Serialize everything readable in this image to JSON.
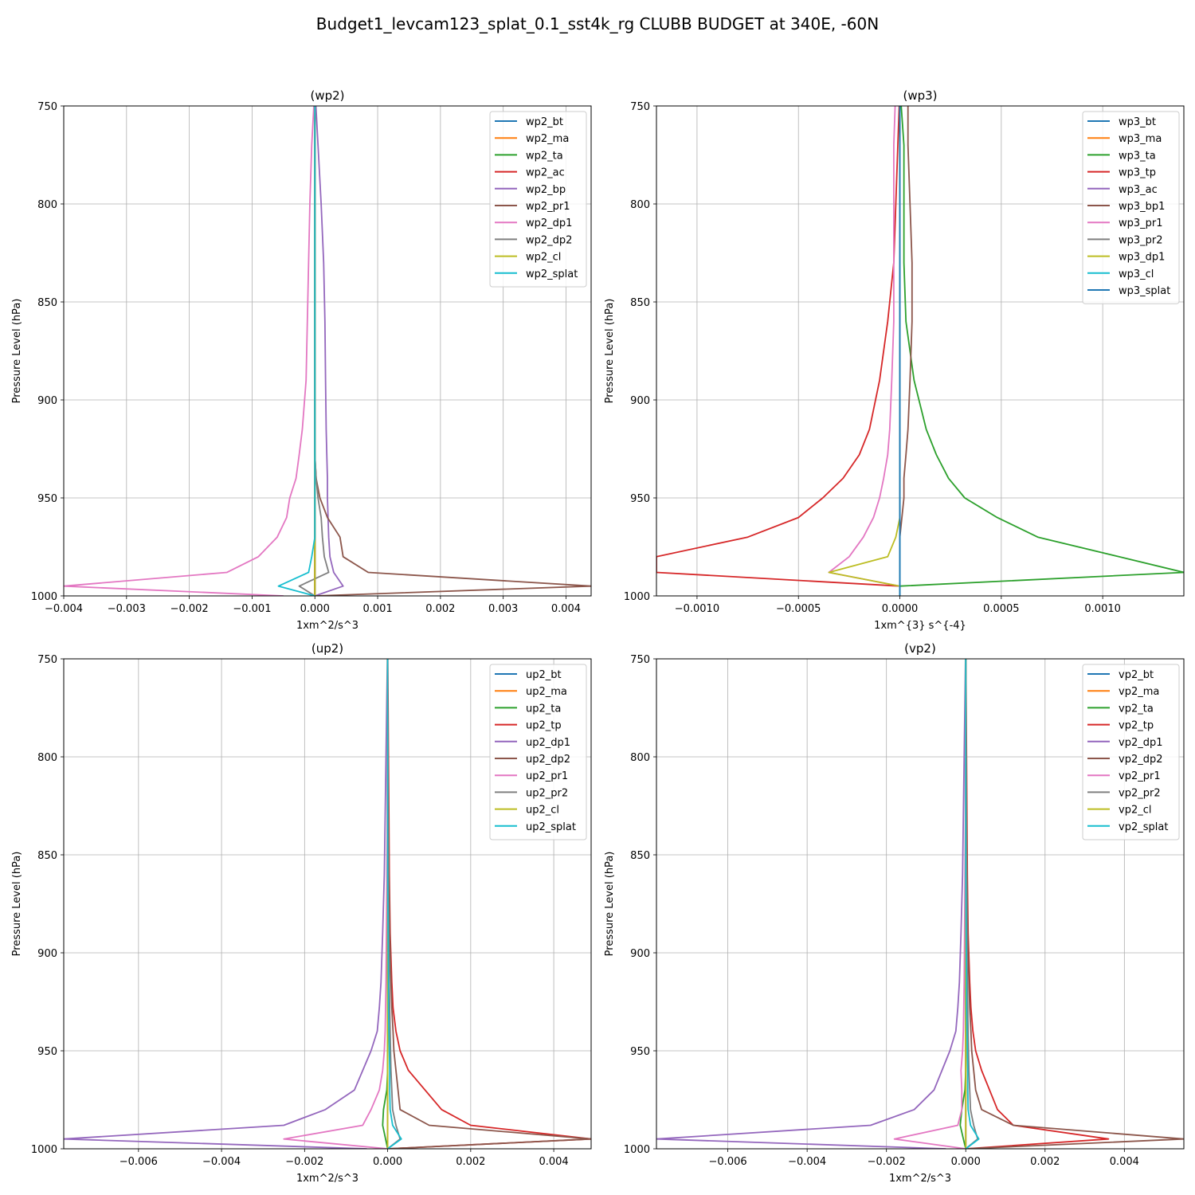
{
  "figure": {
    "title": "Budget1_levcam123_splat_0.1_sst4k_rg CLUBB BUDGET at 340E, -60N"
  },
  "colors": [
    "#1f77b4",
    "#ff7f0e",
    "#2ca02c",
    "#d62728",
    "#9467bd",
    "#8c564b",
    "#e377c2",
    "#7f7f7f",
    "#bcbd22",
    "#17becf"
  ],
  "chart_data": [
    {
      "type": "line",
      "title": "(wp2)",
      "xlabel": "1xm^2/s^3",
      "ylabel": "Pressure Level (hPa)",
      "xlim": [
        -0.004,
        0.0044
      ],
      "ylim": [
        1000,
        750
      ],
      "xticks": [
        -0.004,
        -0.003,
        -0.002,
        -0.001,
        0.0,
        0.001,
        0.002,
        0.003,
        0.004
      ],
      "xtick_labels": [
        "−0.004",
        "−0.003",
        "−0.002",
        "−0.001",
        "0.000",
        "0.001",
        "0.002",
        "0.003",
        "0.004"
      ],
      "yticks": [
        750,
        800,
        850,
        900,
        950,
        1000
      ],
      "ytick_labels": [
        "750",
        "800",
        "850",
        "900",
        "950",
        "1000"
      ],
      "grid": true,
      "legend_position": "top-right",
      "levels": [
        740,
        770,
        800,
        830,
        860,
        890,
        915,
        928,
        940,
        950,
        960,
        970,
        980,
        988,
        995,
        1000
      ],
      "series": [
        {
          "name": "wp2_bt",
          "values": [
            0,
            0,
            0,
            0,
            0,
            0,
            0,
            0,
            0,
            0,
            0,
            0,
            0,
            0,
            0,
            0
          ]
        },
        {
          "name": "wp2_ma",
          "values": [
            0,
            0,
            0,
            0,
            0,
            0,
            0,
            0,
            0,
            0,
            0,
            0,
            0,
            0,
            0,
            0
          ]
        },
        {
          "name": "wp2_ta",
          "values": [
            0,
            0,
            0,
            0,
            0,
            0,
            0,
            0,
            0,
            0,
            0,
            0,
            0,
            0,
            0,
            0
          ]
        },
        {
          "name": "wp2_ac",
          "values": [
            0,
            0,
            0,
            0,
            0,
            0,
            0,
            0,
            0,
            0,
            0,
            0,
            0,
            0,
            0,
            0
          ]
        },
        {
          "name": "wp2_bp",
          "values": [
            0.0,
            5e-05,
            0.0001,
            0.00014,
            0.00016,
            0.00017,
            0.00018,
            0.00019,
            0.0002,
            0.0002,
            0.00021,
            0.00022,
            0.00024,
            0.0003,
            0.00045,
            0.0
          ]
        },
        {
          "name": "wp2_pr1",
          "values": [
            0,
            0,
            0,
            0,
            0,
            0,
            0,
            0,
            2e-05,
            8e-05,
            0.0002,
            0.0004,
            0.00045,
            0.00085,
            0.0044,
            0.0
          ]
        },
        {
          "name": "wp2_dp1",
          "values": [
            0.0,
            -5e-05,
            -8e-05,
            -0.0001,
            -0.00012,
            -0.00014,
            -0.0002,
            -0.00025,
            -0.0003,
            -0.0004,
            -0.00045,
            -0.0006,
            -0.0009,
            -0.0014,
            -0.004,
            -0.0005
          ]
        },
        {
          "name": "wp2_dp2",
          "values": [
            0,
            0,
            0,
            0,
            0,
            0,
            0,
            0,
            2e-05,
            5e-05,
            0.0001,
            0.00012,
            0.00015,
            0.00022,
            -0.00025,
            0.0
          ]
        },
        {
          "name": "wp2_cl",
          "values": [
            0,
            0,
            0,
            0,
            0,
            0,
            0,
            0,
            0,
            0,
            0,
            0,
            0,
            0,
            0,
            0
          ]
        },
        {
          "name": "wp2_splat",
          "values": [
            0,
            0,
            0,
            0,
            0,
            0,
            0,
            0,
            0,
            0,
            0,
            0,
            -5e-05,
            -0.0001,
            -0.00058,
            0.0
          ]
        }
      ]
    },
    {
      "type": "line",
      "title": "(wp3)",
      "xlabel": "1xm^{3} s^{-4}",
      "ylabel": "Pressure Level (hPa)",
      "xlim": [
        -0.0012,
        0.0014
      ],
      "ylim": [
        1000,
        750
      ],
      "xticks": [
        -0.001,
        -0.0005,
        0.0,
        0.0005,
        0.001
      ],
      "xtick_labels": [
        "−0.0010",
        "−0.0005",
        "0.0000",
        "0.0005",
        "0.0010"
      ],
      "yticks": [
        750,
        800,
        850,
        900,
        950,
        1000
      ],
      "ytick_labels": [
        "750",
        "800",
        "850",
        "900",
        "950",
        "1000"
      ],
      "grid": true,
      "legend_position": "top-right",
      "levels": [
        740,
        770,
        800,
        830,
        860,
        890,
        915,
        928,
        940,
        950,
        960,
        970,
        980,
        988,
        995,
        1000
      ],
      "series": [
        {
          "name": "wp3_bt",
          "values": [
            0,
            0,
            0,
            0,
            0,
            0,
            0,
            0,
            0,
            0,
            0,
            0,
            0,
            0,
            0,
            0
          ]
        },
        {
          "name": "wp3_ma",
          "values": [
            0,
            0,
            0,
            0,
            0,
            0,
            0,
            0,
            0,
            0,
            0,
            0,
            0,
            0,
            0,
            0
          ]
        },
        {
          "name": "wp3_ta",
          "values": [
            0.0,
            2e-05,
            2e-05,
            2e-05,
            3e-05,
            7e-05,
            0.00013,
            0.00018,
            0.00024,
            0.00032,
            0.00048,
            0.00068,
            0.00108,
            0.0014,
            0.0,
            0.0
          ]
        },
        {
          "name": "wp3_tp",
          "values": [
            0.0,
            -1e-05,
            -2e-05,
            -3e-05,
            -6e-05,
            -0.0001,
            -0.00015,
            -0.0002,
            -0.00028,
            -0.00038,
            -0.0005,
            -0.00075,
            -0.0012,
            -0.0012,
            0.0,
            0.0
          ]
        },
        {
          "name": "wp3_ac",
          "values": [
            0,
            0,
            0,
            0,
            0,
            0,
            0,
            0,
            0,
            0,
            0,
            0,
            0,
            0,
            0,
            0
          ]
        },
        {
          "name": "wp3_bp1",
          "values": [
            4e-05,
            4e-05,
            5e-05,
            6e-05,
            6e-05,
            5e-05,
            4e-05,
            3e-05,
            2e-05,
            2e-05,
            1e-05,
            0.0,
            0.0,
            0.0,
            0.0,
            0.0
          ]
        },
        {
          "name": "wp3_pr1",
          "values": [
            -2e-05,
            -3e-05,
            -3e-05,
            -3e-05,
            -3e-05,
            -4e-05,
            -5e-05,
            -6e-05,
            -8e-05,
            -0.0001,
            -0.00013,
            -0.00018,
            -0.00025,
            -0.00035,
            0.0,
            0.0
          ]
        },
        {
          "name": "wp3_pr2",
          "values": [
            0,
            0,
            0,
            0,
            0,
            0,
            0,
            0,
            0,
            0,
            0,
            0,
            0,
            0,
            0,
            0
          ]
        },
        {
          "name": "wp3_dp1",
          "values": [
            0.0,
            0.0,
            0.0,
            0.0,
            0.0,
            0.0,
            0.0,
            0.0,
            0.0,
            0.0,
            0.0,
            -2e-05,
            -6e-05,
            -0.00035,
            0.0,
            0.0
          ]
        },
        {
          "name": "wp3_cl",
          "values": [
            0,
            0,
            0,
            0,
            0,
            0,
            0,
            0,
            0,
            0,
            0,
            0,
            0,
            0,
            0,
            0
          ]
        },
        {
          "name": "wp3_splat",
          "values": [
            0,
            0,
            0,
            0,
            0,
            0,
            0,
            0,
            0,
            0,
            0,
            0,
            0,
            0,
            0,
            0
          ]
        }
      ]
    },
    {
      "type": "line",
      "title": "(up2)",
      "xlabel": "1xm^2/s^3",
      "ylabel": "Pressure Level (hPa)",
      "xlim": [
        -0.0078,
        0.0049
      ],
      "ylim": [
        1000,
        750
      ],
      "xticks": [
        -0.006,
        -0.004,
        -0.002,
        0.0,
        0.002,
        0.004
      ],
      "xtick_labels": [
        "−0.006",
        "−0.004",
        "−0.002",
        "0.000",
        "0.002",
        "0.004"
      ],
      "yticks": [
        750,
        800,
        850,
        900,
        950,
        1000
      ],
      "ytick_labels": [
        "750",
        "800",
        "850",
        "900",
        "950",
        "1000"
      ],
      "grid": true,
      "legend_position": "top-right",
      "levels": [
        740,
        770,
        800,
        830,
        860,
        890,
        915,
        928,
        940,
        950,
        960,
        970,
        980,
        988,
        995,
        1000
      ],
      "series": [
        {
          "name": "up2_bt",
          "values": [
            0,
            0,
            0,
            0,
            0,
            0,
            0,
            0,
            0,
            0,
            0,
            0,
            0,
            0,
            0,
            0
          ]
        },
        {
          "name": "up2_ma",
          "values": [
            0,
            0,
            0,
            0,
            0,
            0,
            0,
            0,
            0,
            0,
            0,
            0,
            0,
            0,
            0,
            0
          ]
        },
        {
          "name": "up2_ta",
          "values": [
            0,
            0,
            0,
            0,
            0,
            0,
            0,
            0,
            0,
            0,
            0,
            -2e-05,
            -0.0001,
            -0.00012,
            -5e-05,
            0.0
          ]
        },
        {
          "name": "up2_tp",
          "values": [
            0.0,
            1e-05,
            2e-05,
            3e-05,
            4e-05,
            6e-05,
            0.0001,
            0.00013,
            0.0002,
            0.0003,
            0.0005,
            0.0009,
            0.0013,
            0.002,
            0.0049,
            0.0
          ]
        },
        {
          "name": "up2_dp1",
          "values": [
            0.0,
            -2e-05,
            -4e-05,
            -6e-05,
            -8e-05,
            -0.00012,
            -0.00016,
            -0.0002,
            -0.00025,
            -0.0004,
            -0.0006,
            -0.0008,
            -0.0015,
            -0.0025,
            -0.0078,
            -0.0005
          ]
        },
        {
          "name": "up2_dp2",
          "values": [
            0.0,
            0.0,
            1e-05,
            2e-05,
            3e-05,
            5e-05,
            8e-05,
            0.0001,
            0.00013,
            0.00015,
            0.0002,
            0.00025,
            0.0003,
            0.001,
            0.0049,
            0.0
          ]
        },
        {
          "name": "up2_pr1",
          "values": [
            0.0,
            0.0,
            -1e-05,
            -1e-05,
            -2e-05,
            -3e-05,
            -4e-05,
            -5e-05,
            -6e-05,
            -8e-05,
            -0.00012,
            -0.0002,
            -0.0004,
            -0.0006,
            -0.0025,
            0.0
          ]
        },
        {
          "name": "up2_pr2",
          "values": [
            0.0,
            0.0,
            1e-05,
            1e-05,
            2e-05,
            3e-05,
            4e-05,
            5e-05,
            6e-05,
            7e-05,
            8e-05,
            0.0001,
            0.00012,
            0.0002,
            0.0003,
            0.0
          ]
        },
        {
          "name": "up2_cl",
          "values": [
            0,
            0,
            0,
            0,
            0,
            0,
            0,
            0,
            0,
            0,
            0,
            0,
            0,
            0,
            0,
            0
          ]
        },
        {
          "name": "up2_splat",
          "values": [
            0.0,
            0.0,
            0.0,
            0.0,
            0.0,
            1e-05,
            2e-05,
            2e-05,
            3e-05,
            4e-05,
            5e-05,
            5e-05,
            6e-05,
            0.00012,
            0.00033,
            0.0
          ]
        }
      ]
    },
    {
      "type": "line",
      "title": "(vp2)",
      "xlabel": "1xm^2/s^3",
      "ylabel": "Pressure Level (hPa)",
      "xlim": [
        -0.0078,
        0.0055
      ],
      "ylim": [
        1000,
        750
      ],
      "xticks": [
        -0.006,
        -0.004,
        -0.002,
        0.0,
        0.002,
        0.004
      ],
      "xtick_labels": [
        "−0.006",
        "−0.004",
        "−0.002",
        "0.000",
        "0.002",
        "0.004"
      ],
      "yticks": [
        750,
        800,
        850,
        900,
        950,
        1000
      ],
      "ytick_labels": [
        "750",
        "800",
        "850",
        "900",
        "950",
        "1000"
      ],
      "grid": true,
      "legend_position": "top-right",
      "levels": [
        740,
        770,
        800,
        830,
        860,
        890,
        915,
        928,
        940,
        950,
        960,
        970,
        980,
        988,
        995,
        1000
      ],
      "series": [
        {
          "name": "vp2_bt",
          "values": [
            0,
            0,
            0,
            0,
            0,
            0,
            0,
            0,
            0,
            0,
            0,
            0,
            0,
            0,
            0,
            0
          ]
        },
        {
          "name": "vp2_ma",
          "values": [
            0,
            0,
            0,
            0,
            0,
            0,
            0,
            0,
            0,
            0,
            0,
            0,
            0,
            0,
            0,
            0
          ]
        },
        {
          "name": "vp2_ta",
          "values": [
            0,
            0,
            0,
            0,
            0,
            0,
            0,
            0,
            0,
            0,
            0,
            -2e-05,
            -0.0001,
            -0.00014,
            -6e-05,
            0.0
          ]
        },
        {
          "name": "vp2_tp",
          "values": [
            0.0,
            1e-05,
            2e-05,
            3e-05,
            4e-05,
            6e-05,
            0.0001,
            0.00013,
            0.00018,
            0.00025,
            0.0004,
            0.0006,
            0.0008,
            0.0012,
            0.0036,
            0.0
          ]
        },
        {
          "name": "vp2_dp1",
          "values": [
            0.0,
            -2e-05,
            -4e-05,
            -6e-05,
            -8e-05,
            -0.00012,
            -0.00016,
            -0.0002,
            -0.00025,
            -0.0004,
            -0.0006,
            -0.0008,
            -0.0013,
            -0.0024,
            -0.0078,
            -0.0005
          ]
        },
        {
          "name": "vp2_dp2",
          "values": [
            0.0,
            0.0,
            1e-05,
            2e-05,
            3e-05,
            5e-05,
            8e-05,
            0.0001,
            0.00013,
            0.00015,
            0.0002,
            0.00025,
            0.0004,
            0.0012,
            0.0055,
            0.0
          ]
        },
        {
          "name": "vp2_pr1",
          "values": [
            0.0,
            0.0,
            -1e-05,
            -1e-05,
            -2e-05,
            -3e-05,
            -4e-05,
            -5e-05,
            -6e-05,
            -8e-05,
            -0.00012,
            -0.0001,
            -0.0001,
            -0.0002,
            -0.0018,
            0.0
          ]
        },
        {
          "name": "vp2_pr2",
          "values": [
            0.0,
            0.0,
            1e-05,
            1e-05,
            2e-05,
            3e-05,
            4e-05,
            5e-05,
            6e-05,
            7e-05,
            8e-05,
            0.0001,
            0.00012,
            0.0002,
            0.0003,
            0.0
          ]
        },
        {
          "name": "vp2_cl",
          "values": [
            0,
            0,
            0,
            0,
            0,
            0,
            0,
            0,
            0,
            0,
            0,
            0,
            0,
            0,
            0,
            0
          ]
        },
        {
          "name": "vp2_splat",
          "values": [
            0.0,
            0.0,
            0.0,
            0.0,
            0.0,
            1e-05,
            2e-05,
            2e-05,
            3e-05,
            4e-05,
            5e-05,
            5e-05,
            6e-05,
            0.00012,
            0.00033,
            0.0
          ]
        }
      ]
    }
  ]
}
